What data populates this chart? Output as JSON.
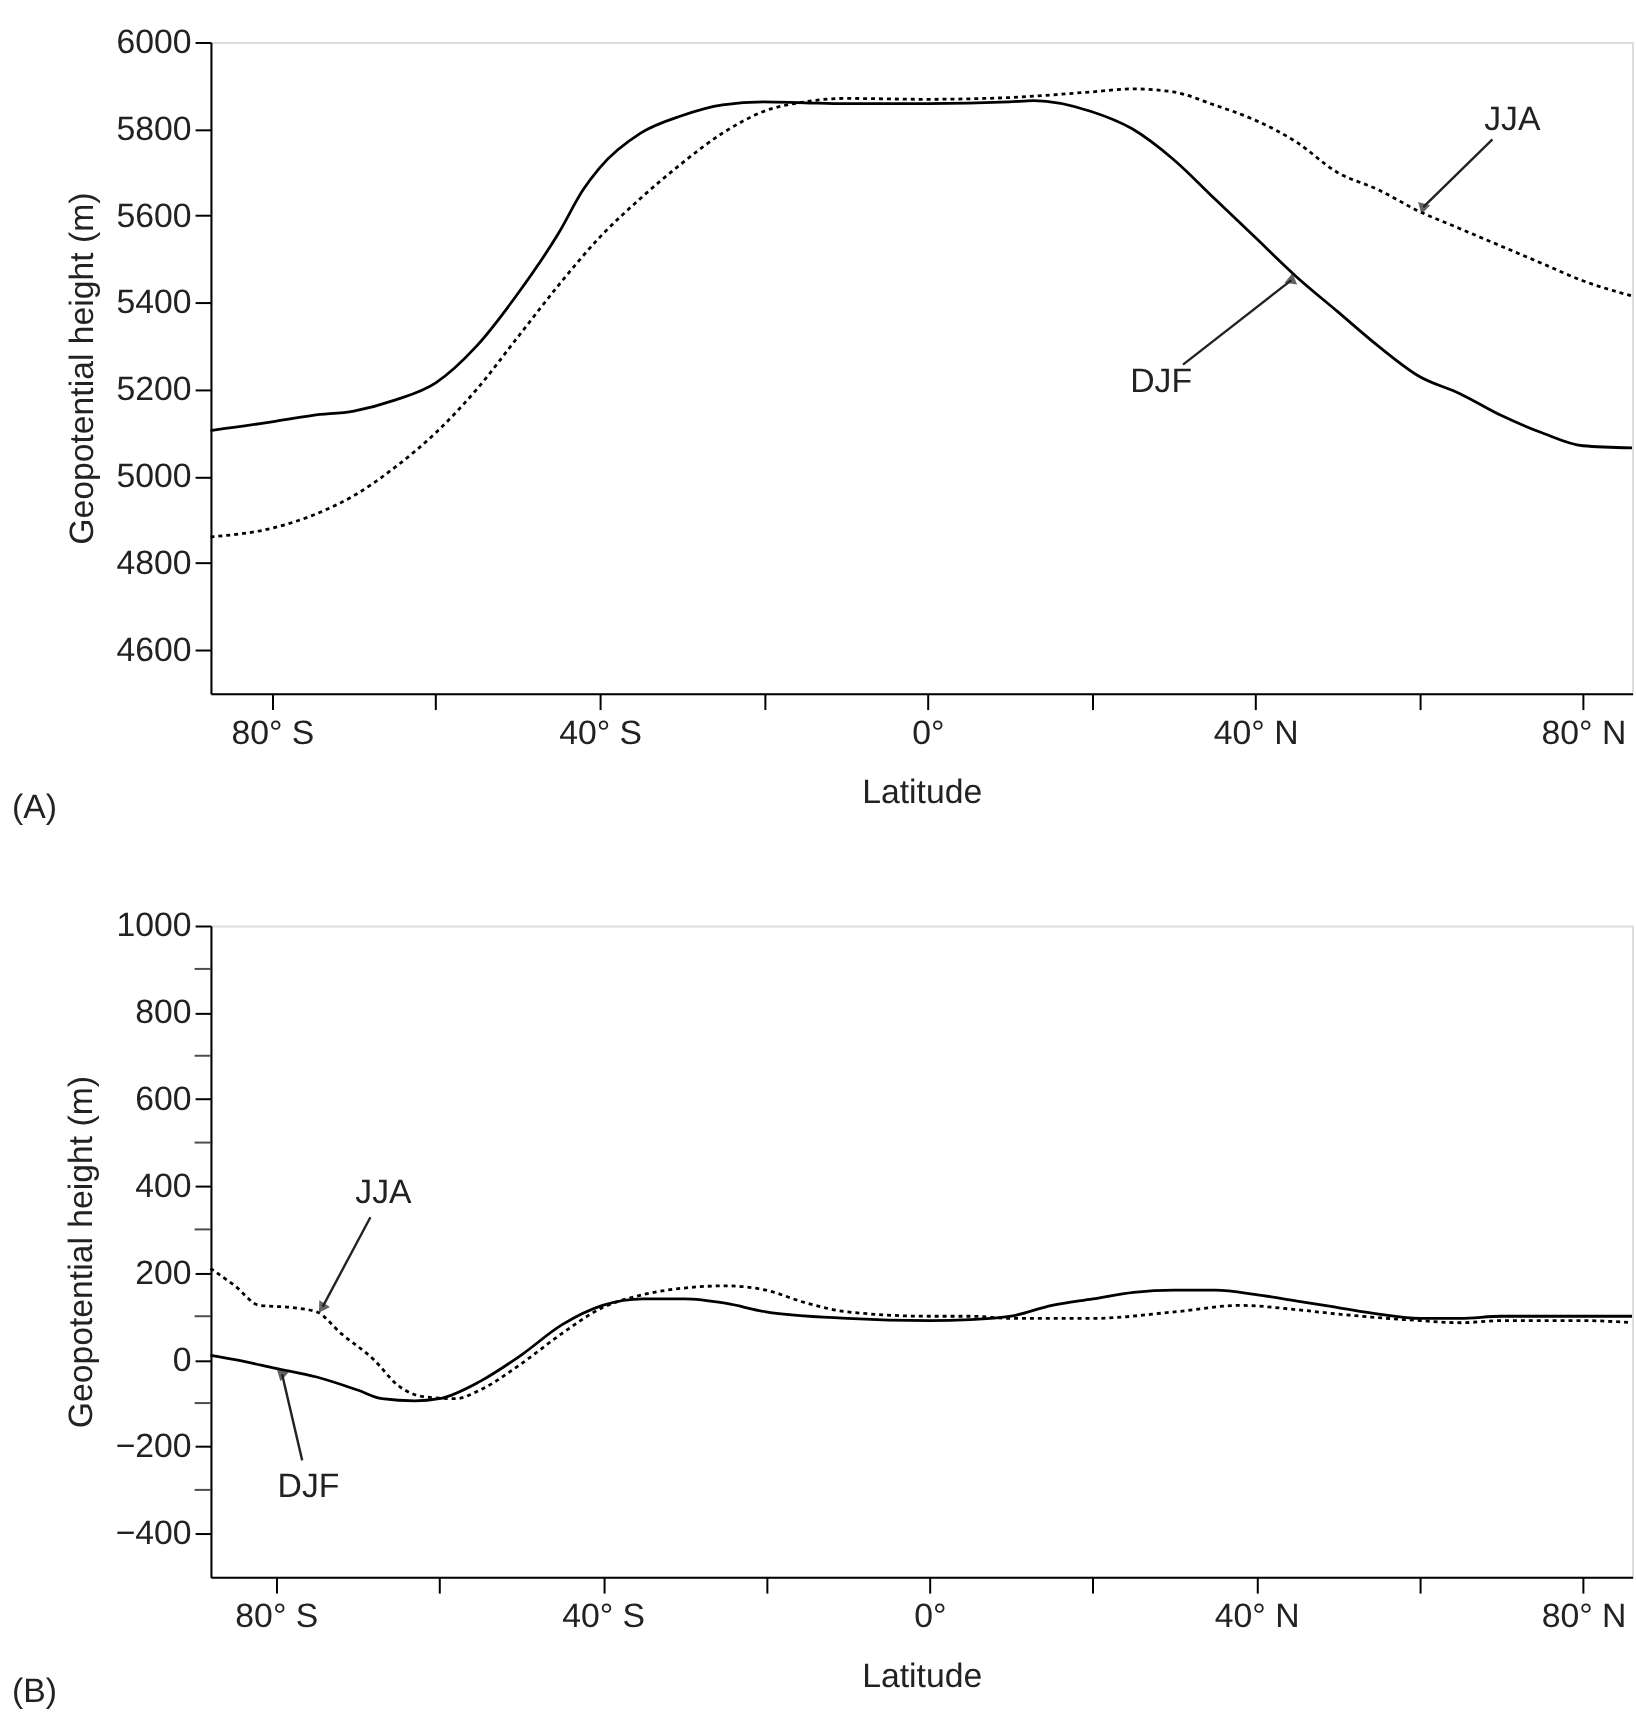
{
  "chart_data": [
    {
      "type": "line",
      "xlabel": "Latitude",
      "ylabel": "Geopotential height (m)",
      "xlim": [
        -87.5,
        86
      ],
      "ylim": [
        4500,
        6000
      ],
      "xticks": [
        {
          "value": -80,
          "label": "80° S"
        },
        {
          "value": -60,
          "label": null
        },
        {
          "value": -40,
          "label": "40° S"
        },
        {
          "value": -20,
          "label": null
        },
        {
          "value": 0,
          "label": "0°"
        },
        {
          "value": 20,
          "label": null
        },
        {
          "value": 40,
          "label": "40° N"
        },
        {
          "value": 60,
          "label": null
        },
        {
          "value": 80,
          "label": "80° N"
        }
      ],
      "yticks": [
        4600,
        4800,
        5000,
        5200,
        5400,
        5600,
        5800,
        6000
      ],
      "grid": false,
      "marker": "none",
      "series": [
        {
          "color": "#000000",
          "line_style": "solid",
          "x": [
            -87.5,
            -80,
            -75,
            -70,
            -65,
            -60,
            -55,
            -50,
            -45,
            -42,
            -40,
            -35,
            -30,
            -25,
            -20,
            -15,
            -10,
            0,
            10,
            13,
            20,
            25,
            30,
            35,
            40,
            45,
            50,
            55,
            60,
            65,
            70,
            75,
            80,
            86
          ],
          "values": [
            5105,
            5125,
            5140,
            5150,
            5175,
            5215,
            5300,
            5420,
            5560,
            5660,
            5710,
            5790,
            5830,
            5855,
            5862,
            5860,
            5858,
            5858,
            5862,
            5865,
            5840,
            5800,
            5730,
            5640,
            5550,
            5460,
            5380,
            5300,
            5230,
            5190,
            5140,
            5100,
            5070,
            5065
          ]
        },
        {
          "color": "#000000",
          "line_style": "dotted",
          "x": [
            -87.5,
            -80,
            -75,
            -70,
            -65,
            -60,
            -55,
            -50,
            -45,
            -40,
            -35,
            -30,
            -25,
            -20,
            -15,
            -10,
            0,
            10,
            20,
            25,
            30,
            35,
            40,
            45,
            50,
            55,
            60,
            65,
            70,
            75,
            80,
            86
          ],
          "values": [
            4860,
            4880,
            4910,
            4955,
            5020,
            5100,
            5200,
            5320,
            5440,
            5550,
            5640,
            5720,
            5790,
            5840,
            5862,
            5870,
            5868,
            5872,
            5885,
            5892,
            5885,
            5855,
            5820,
            5770,
            5700,
            5660,
            5610,
            5570,
            5530,
            5490,
            5450,
            5415
          ]
        }
      ],
      "annotations": [
        {
          "text": "JJA",
          "x": 60,
          "y": 5610
        },
        {
          "text": "DJF",
          "x": 45,
          "y": 5460
        },
        "(A)"
      ]
    },
    {
      "type": "line",
      "xlabel": "Latitude",
      "ylabel": "Geopotential height (m)",
      "xlim": [
        -88,
        86
      ],
      "ylim": [
        -500,
        1000
      ],
      "xticks": [
        {
          "value": -80,
          "label": "80° S"
        },
        {
          "value": -60,
          "label": null
        },
        {
          "value": -40,
          "label": "40° S"
        },
        {
          "value": -20,
          "label": null
        },
        {
          "value": 0,
          "label": "0°"
        },
        {
          "value": 20,
          "label": null
        },
        {
          "value": 40,
          "label": "40° N"
        },
        {
          "value": 60,
          "label": null
        },
        {
          "value": 80,
          "label": "80° N"
        }
      ],
      "yticks": [
        {
          "value": -400,
          "label": "−400"
        },
        {
          "value": -300,
          "label": null
        },
        {
          "value": -200,
          "label": "−200"
        },
        {
          "value": -100,
          "label": null
        },
        0,
        {
          "value": 100,
          "label": null
        },
        200,
        {
          "value": 300,
          "label": null
        },
        400,
        {
          "value": 500,
          "label": null
        },
        600,
        {
          "value": 700,
          "label": null
        },
        800,
        {
          "value": 900,
          "label": null
        },
        1000
      ],
      "grid": false,
      "marker": "none",
      "series": [
        {
          "color": "#000000",
          "line_style": "solid",
          "x": [
            -88,
            -85,
            -80,
            -75,
            -70,
            -67,
            -63,
            -60,
            -55,
            -50,
            -45,
            -40,
            -35,
            -30,
            -25,
            -20,
            -10,
            0,
            5,
            10,
            15,
            20,
            25,
            30,
            35,
            40,
            45,
            50,
            55,
            60,
            65,
            70,
            75,
            80,
            86
          ],
          "values": [
            10,
            0,
            -20,
            -40,
            -70,
            -90,
            -95,
            -90,
            -50,
            10,
            80,
            125,
            140,
            140,
            130,
            110,
            95,
            90,
            92,
            100,
            125,
            140,
            155,
            160,
            160,
            150,
            135,
            120,
            105,
            95,
            95,
            100,
            100,
            100,
            100
          ]
        },
        {
          "color": "#000000",
          "line_style": "dotted",
          "x": [
            -88,
            -85,
            -82,
            -78,
            -75,
            -72,
            -68,
            -65,
            -62,
            -58,
            -55,
            -50,
            -45,
            -40,
            -35,
            -30,
            -25,
            -20,
            -15,
            -10,
            0,
            5,
            10,
            15,
            20,
            30,
            38,
            45,
            50,
            60,
            65,
            70,
            80,
            86
          ],
          "values": [
            210,
            170,
            125,
            120,
            110,
            60,
            0,
            -60,
            -85,
            -90,
            -70,
            -10,
            60,
            120,
            150,
            165,
            170,
            160,
            130,
            110,
            100,
            100,
            95,
            95,
            95,
            110,
            125,
            115,
            105,
            90,
            85,
            90,
            90,
            85
          ]
        }
      ],
      "annotations": [
        {
          "text": "JJA",
          "x": -74.6,
          "y": 110
        },
        {
          "text": "DJF",
          "x": -79.4,
          "y": -20
        },
        "(B)"
      ]
    }
  ]
}
